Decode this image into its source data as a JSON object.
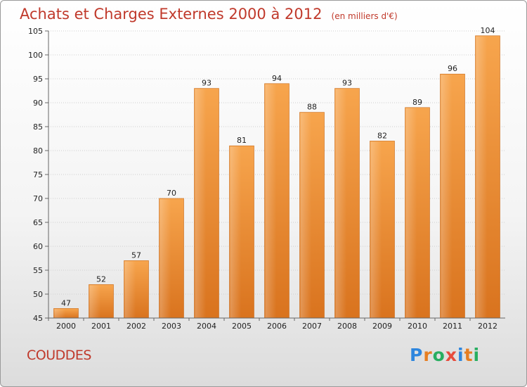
{
  "header": {
    "title": "Achats et Charges Externes 2000 à 2012",
    "unit": "(en milliers d'€)"
  },
  "commune": "COUDDES",
  "logo": {
    "text": "Proxiti",
    "letters": [
      {
        "ch": "P",
        "color": "#2e86de"
      },
      {
        "ch": "r",
        "color": "#e67e22"
      },
      {
        "ch": "o",
        "color": "#27ae60"
      },
      {
        "ch": "x",
        "color": "#e74c3c"
      },
      {
        "ch": "i",
        "color": "#2e86de"
      },
      {
        "ch": "t",
        "color": "#e67e22"
      },
      {
        "ch": "i",
        "color": "#27ae60"
      }
    ]
  },
  "chart_data": {
    "type": "bar",
    "categories": [
      "2000",
      "2001",
      "2002",
      "2003",
      "2004",
      "2005",
      "2006",
      "2007",
      "2008",
      "2009",
      "2010",
      "2011",
      "2012"
    ],
    "values": [
      47,
      52,
      57,
      70,
      93,
      81,
      94,
      88,
      93,
      82,
      89,
      96,
      104
    ],
    "title": "Achats et Charges Externes 2000 à 2012",
    "ylim": [
      45,
      105
    ],
    "yticks": [
      45,
      50,
      55,
      60,
      65,
      70,
      75,
      80,
      85,
      90,
      95,
      100,
      105
    ],
    "grid": true,
    "bar_color": "#f0923a"
  }
}
